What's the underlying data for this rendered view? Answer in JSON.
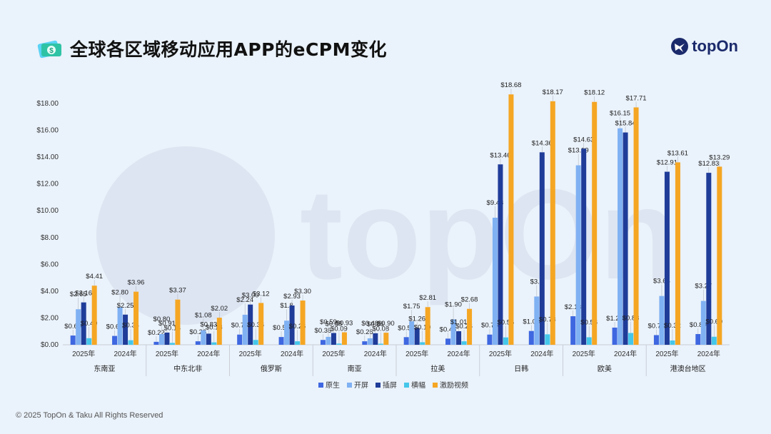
{
  "header": {
    "title": "全球各区域移动应用APP的eCPM变化",
    "title_icon": "money-icon"
  },
  "brand": {
    "name": "topOn",
    "logo_icon": "topon-logo-icon",
    "color": "#1b2a6b"
  },
  "footer": {
    "copyright": "© 2025 TopOn & Taku All Rights Reserved"
  },
  "chart_data": {
    "type": "bar",
    "title": "",
    "xlabel": "",
    "ylabel": "",
    "ylim": [
      0,
      18
    ],
    "yticks": [
      "$0.00",
      "$2.00",
      "$4.00",
      "$6.00",
      "$8.00",
      "$10.00",
      "$12.00",
      "$14.00",
      "$16.00",
      "$18.00"
    ],
    "grid": false,
    "legend_position": "bottom",
    "groups": [
      "东南亚",
      "中东北非",
      "俄罗斯",
      "南亚",
      "拉美",
      "日韩",
      "欧美",
      "港澳台地区"
    ],
    "years": [
      "2025年",
      "2024年"
    ],
    "series": [
      {
        "name": "原生",
        "color": "#3e67e0",
        "values": [
          0.69,
          0.66,
          0.22,
          0.26,
          0.76,
          0.58,
          0.36,
          0.26,
          0.57,
          0.46,
          0.76,
          1.03,
          2.13,
          1.28,
          0.72,
          0.8
        ],
        "labels": [
          "$0.69",
          "$0.66",
          "$0.22",
          "$0.26",
          "$0.76",
          "$0.58",
          "$0.36",
          "$0.26",
          "$0.57",
          "$0.46",
          "$0.76",
          "$1.03",
          "$2.13",
          "$1.28",
          "$0.72",
          "$0.80"
        ]
      },
      {
        "name": "开屏",
        "color": "#7fb1f3",
        "values": [
          2.65,
          2.8,
          0.8,
          1.08,
          2.24,
          1.8,
          0.59,
          0.48,
          1.75,
          1.9,
          9.48,
          3.6,
          13.39,
          16.15,
          3.64,
          3.27
        ],
        "labels": [
          "$2.65",
          "$2.80",
          "$0.80",
          "$1.08",
          "$2.24",
          "$1.8",
          "$0.59",
          "$0.48",
          "$1.75",
          "$1.90",
          "$9.48",
          "$3.6",
          "$13.39",
          "$16.15",
          "$3.64",
          "$3.27"
        ]
      },
      {
        "name": "插屏",
        "color": "#1f3c99",
        "values": [
          3.16,
          2.25,
          0.91,
          0.83,
          3.0,
          2.93,
          0.88,
          0.86,
          1.26,
          1.01,
          13.46,
          14.36,
          14.63,
          15.84,
          12.91,
          12.83
        ],
        "labels": [
          "$3.16",
          "$2.25",
          "$0.91",
          "$0.83",
          "$3.00",
          "$2.93",
          "$0.88",
          "$0.86",
          "$1.26",
          "$1.01",
          "$13.46",
          "$14.36",
          "$14.63",
          "$15.84",
          "$12.91",
          "$12.83"
        ]
      },
      {
        "name": "横幅",
        "color": "#45c7ea",
        "values": [
          0.49,
          0.34,
          0.14,
          0.18,
          0.36,
          0.26,
          0.09,
          0.08,
          0.19,
          0.26,
          0.55,
          0.78,
          0.56,
          0.88,
          0.32,
          0.6
        ],
        "labels": [
          "$0.49",
          "$0.34",
          "$0.14",
          "$0.18",
          "$0.36",
          "$0.26",
          "$0.09",
          "$0.08",
          "$0.19",
          "$0.26",
          "$0.55",
          "$0.78",
          "$0.56",
          "$0.88",
          "$0.32",
          "$0.60"
        ]
      },
      {
        "name": "激励视频",
        "color": "#f5a623",
        "values": [
          4.41,
          3.96,
          3.37,
          2.02,
          3.12,
          3.3,
          0.93,
          0.9,
          2.81,
          2.68,
          18.68,
          18.17,
          18.12,
          17.71,
          13.61,
          13.29
        ],
        "labels": [
          "$4.41",
          "$3.96",
          "$3.37",
          "$2.02",
          "$3.12",
          "$3.30",
          "$0.93",
          "$0.90",
          "$2.81",
          "$2.68",
          "$18.68",
          "$18.17",
          "$18.12",
          "$17.71",
          "$13.61",
          "$13.29"
        ]
      }
    ]
  }
}
